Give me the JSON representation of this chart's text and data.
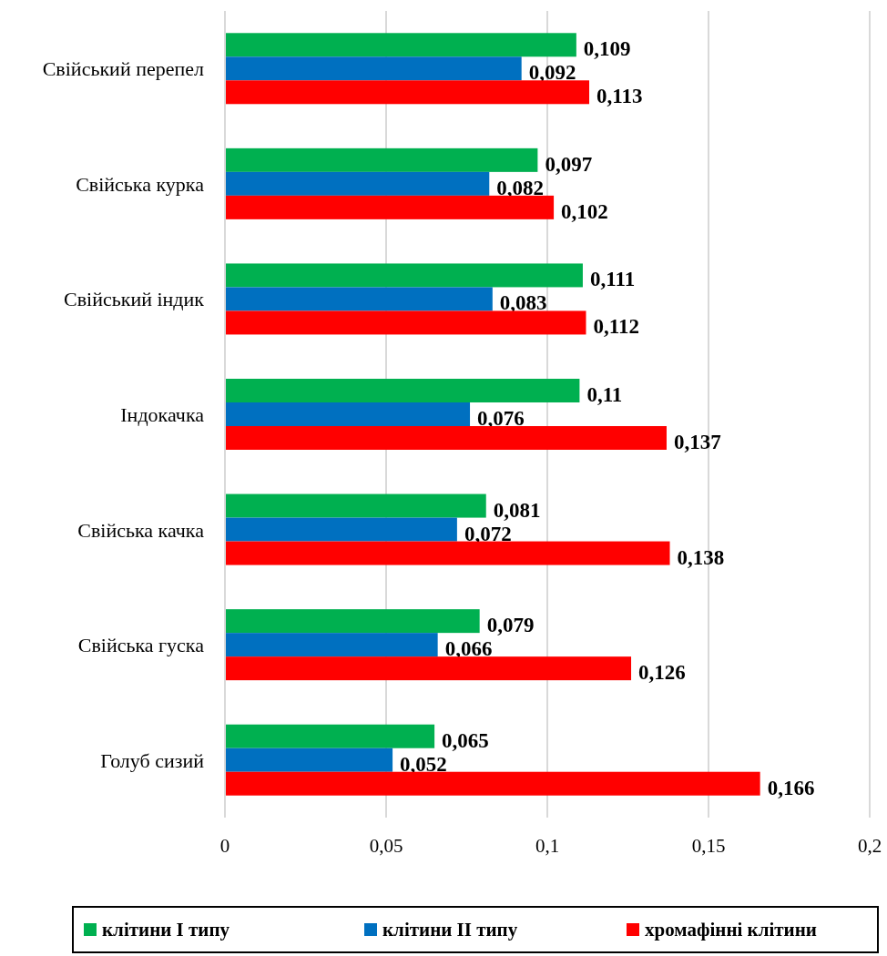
{
  "chart_data": {
    "type": "bar",
    "orientation": "horizontal",
    "categories": [
      "Свійський перепел",
      "Свійська курка",
      "Свійський індик",
      "Індокачка",
      "Свійська качка",
      "Свійська гуска",
      "Голуб сизий"
    ],
    "series": [
      {
        "name": "клітини I типу",
        "color": "#00b050",
        "values": [
          0.109,
          0.097,
          0.111,
          0.11,
          0.081,
          0.079,
          0.065
        ],
        "value_labels": [
          "0,109",
          "0,097",
          "0,111",
          "0,11",
          "0,081",
          "0,079",
          "0,065"
        ]
      },
      {
        "name": "клітини II типу",
        "color": "#0070c0",
        "values": [
          0.092,
          0.082,
          0.083,
          0.076,
          0.072,
          0.066,
          0.052
        ],
        "value_labels": [
          "0,092",
          "0,082",
          "0,083",
          "0,076",
          "0,072",
          "0,066",
          "0,052"
        ]
      },
      {
        "name": "хромафінні клітини",
        "color": "#ff0000",
        "values": [
          0.113,
          0.102,
          0.112,
          0.137,
          0.138,
          0.126,
          0.166
        ],
        "value_labels": [
          "0,113",
          "0,102",
          "0,112",
          "0,137",
          "0,138",
          "0,126",
          "0,166"
        ]
      }
    ],
    "xlim": [
      0,
      0.2
    ],
    "xticks": [
      0,
      {
        "value": 0.05,
        "label": "0,05"
      },
      {
        "value": 0.1,
        "label": "0,1"
      },
      {
        "value": 0.15,
        "label": "0,15"
      },
      {
        "value": 0.2,
        "label": "0,2"
      }
    ],
    "grid": "x",
    "legend": "bottom"
  }
}
